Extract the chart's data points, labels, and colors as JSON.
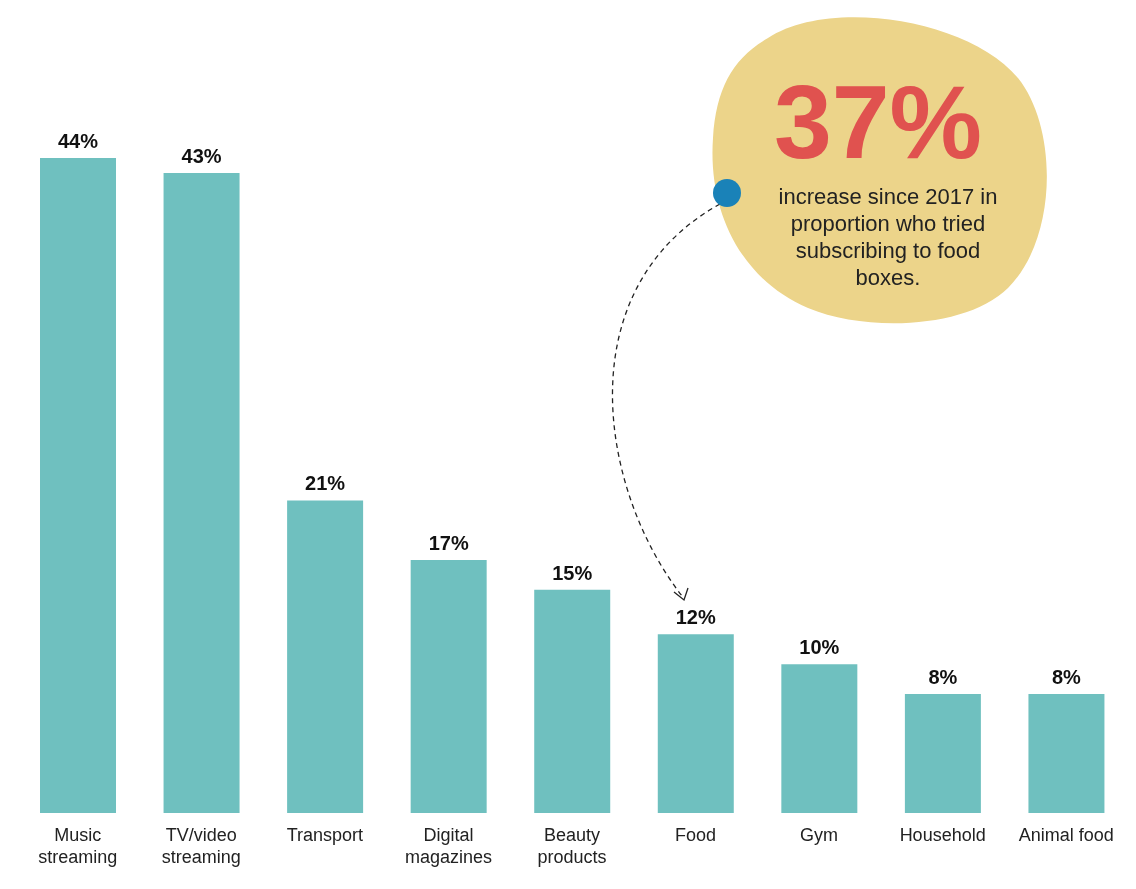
{
  "chart_data": {
    "type": "bar",
    "categories": [
      "Music streaming",
      "TV/video streaming",
      "Transport",
      "Digital magazines",
      "Beauty products",
      "Food",
      "Gym",
      "Household",
      "Animal food"
    ],
    "values": [
      44,
      43,
      21,
      17,
      15,
      12,
      10,
      8,
      8
    ],
    "value_labels": [
      "44%",
      "43%",
      "21%",
      "17%",
      "15%",
      "12%",
      "10%",
      "8%",
      "8%"
    ],
    "color": "#6fc0bf",
    "annotations": [
      "37%",
      "increase since 2017 in proportion who tried subscribing to food boxes."
    ]
  }
}
